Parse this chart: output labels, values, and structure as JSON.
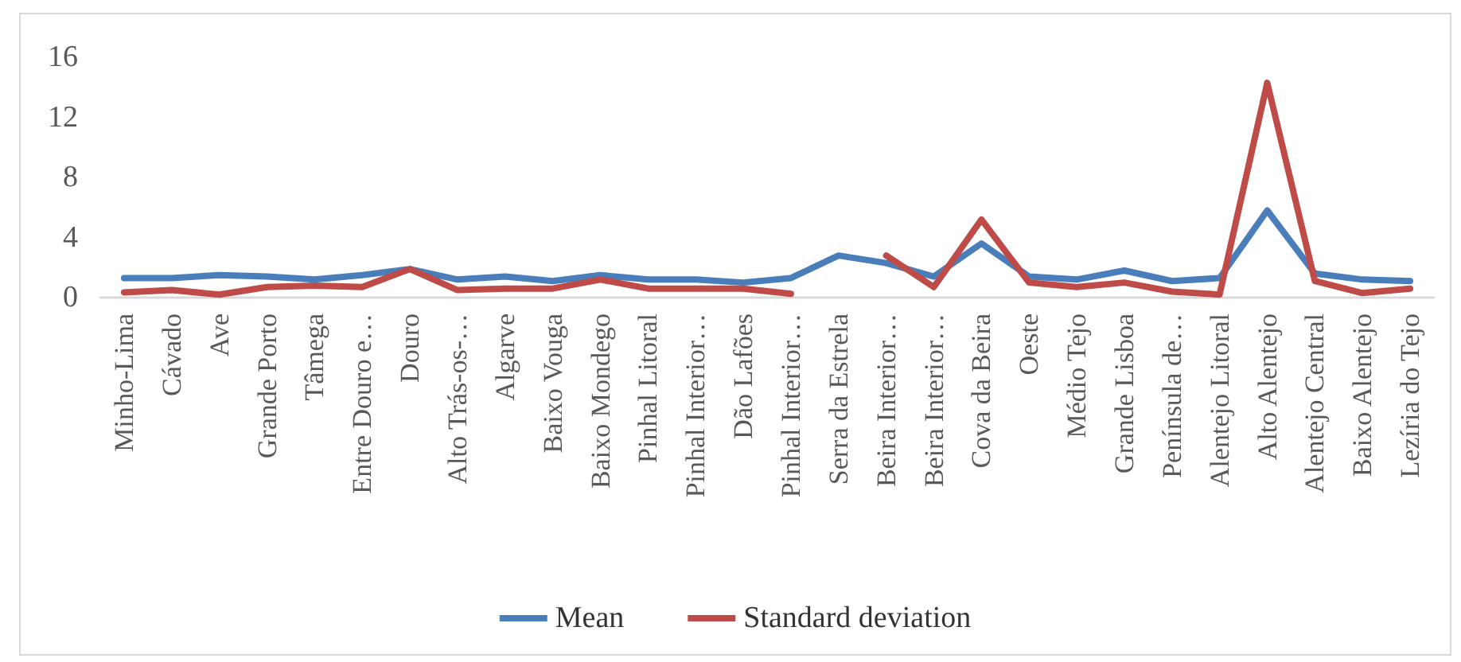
{
  "chart_data": {
    "type": "line",
    "categories": [
      "Minho-Lima",
      "Cávado",
      "Ave",
      "Grande Porto",
      "Tâmega",
      "Entre Douro e…",
      "Douro",
      "Alto Trás-os-…",
      "Algarve",
      "Baixo Vouga",
      "Baixo Mondego",
      "Pinhal Litoral",
      "Pinhal Interior…",
      "Dão Lafões",
      "Pinhal Interior…",
      "Serra da Estrela",
      "Beira Interior…",
      "Beira Interior…",
      "Cova da Beira",
      "Oeste",
      "Médio Tejo",
      "Grande Lisboa",
      "Península de…",
      "Alentejo Litoral",
      "Alto Alentejo",
      "Alentejo Central",
      "Baixo Alentejo",
      "Lezíria do Tejo"
    ],
    "series": [
      {
        "name": "Mean",
        "color": "#4a7ebb",
        "values": [
          1.3,
          1.3,
          1.5,
          1.4,
          1.2,
          1.5,
          1.9,
          1.2,
          1.4,
          1.1,
          1.5,
          1.2,
          1.2,
          1.0,
          1.3,
          2.8,
          2.3,
          1.4,
          3.6,
          1.4,
          1.2,
          1.8,
          1.1,
          1.3,
          5.8,
          1.6,
          1.2,
          1.1
        ]
      },
      {
        "name": "Standard deviation",
        "color": "#be4b48",
        "values": [
          0.35,
          0.5,
          0.2,
          0.7,
          0.8,
          0.7,
          1.9,
          0.5,
          0.6,
          0.6,
          1.2,
          0.6,
          0.6,
          0.6,
          0.25,
          null,
          2.8,
          0.7,
          5.2,
          1.0,
          0.7,
          1.0,
          0.4,
          0.2,
          14.3,
          1.1,
          0.3,
          0.6
        ]
      }
    ],
    "ylim": [
      0,
      16
    ],
    "yticks": [
      0,
      4,
      8,
      12,
      16
    ],
    "grid": false,
    "legend": "bottom",
    "marker": "none",
    "line_style": "solid"
  }
}
